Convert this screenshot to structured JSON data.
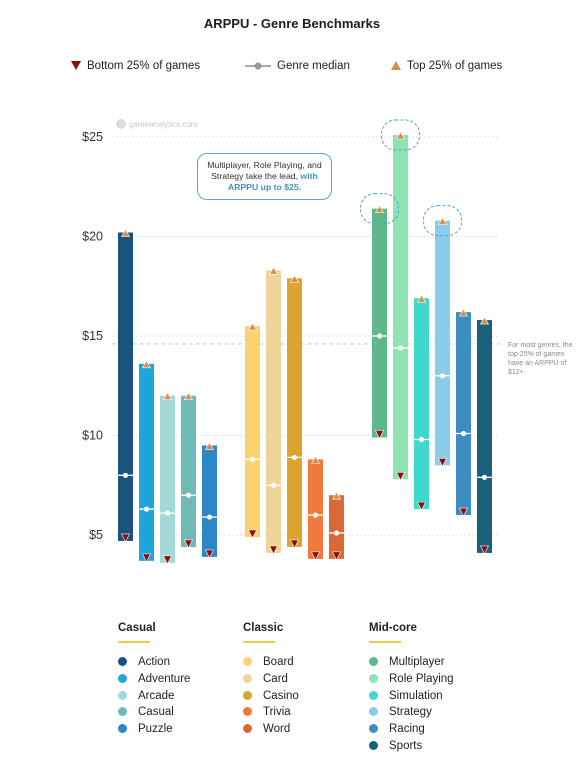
{
  "chart_data": {
    "type": "range-bar",
    "title": "ARPPU - Genre Benchmarks",
    "legend": {
      "bottom": "Bottom 25% of games",
      "median": "Genre median",
      "top": "Top 25% of games"
    },
    "y_ticks": [
      "$25",
      "$20",
      "$15",
      "$10",
      "$5"
    ],
    "ylim": [
      3.5,
      26
    ],
    "reference_line": 14.6,
    "groups": [
      {
        "name": "Casual",
        "series": [
          {
            "name": "Action",
            "color": "#1b527e",
            "bottom": 4.7,
            "median": 8.0,
            "top": 20.2
          },
          {
            "name": "Adventure",
            "color": "#1ea6db",
            "bottom": 3.7,
            "median": 6.3,
            "top": 13.6
          },
          {
            "name": "Arcade",
            "color": "#a3d8d8",
            "bottom": 3.6,
            "median": 6.1,
            "top": 12.0
          },
          {
            "name": "Casual",
            "color": "#6fbab5",
            "bottom": 4.4,
            "median": 7.0,
            "top": 12.0
          },
          {
            "name": "Puzzle",
            "color": "#2c87c4",
            "bottom": 3.9,
            "median": 5.9,
            "top": 9.5
          }
        ]
      },
      {
        "name": "Classic",
        "series": [
          {
            "name": "Board",
            "color": "#fbd26e",
            "bottom": 4.9,
            "median": 8.8,
            "top": 15.5
          },
          {
            "name": "Card",
            "color": "#efd49a",
            "bottom": 4.1,
            "median": 7.5,
            "top": 18.3
          },
          {
            "name": "Casino",
            "color": "#dca32e",
            "bottom": 4.4,
            "median": 8.9,
            "top": 17.9
          },
          {
            "name": "Trivia",
            "color": "#f0793e",
            "bottom": 3.8,
            "median": 6.0,
            "top": 8.8
          },
          {
            "name": "Word",
            "color": "#d96a38",
            "bottom": 3.8,
            "median": 5.1,
            "top": 7.0
          }
        ]
      },
      {
        "name": "Mid-core",
        "series": [
          {
            "name": "Multiplayer",
            "color": "#5fb88a",
            "bottom": 9.9,
            "median": 15.0,
            "top": 21.4
          },
          {
            "name": "Role Playing",
            "color": "#8fe3b3",
            "bottom": 7.8,
            "median": 14.4,
            "top": 25.1
          },
          {
            "name": "Simulation",
            "color": "#3fd8cd",
            "bottom": 6.3,
            "median": 9.8,
            "top": 16.9
          },
          {
            "name": "Strategy",
            "color": "#89cdea",
            "bottom": 8.5,
            "median": 13.0,
            "top": 20.8
          },
          {
            "name": "Racing",
            "color": "#3c8ec0",
            "bottom": 6.0,
            "median": 10.1,
            "top": 16.2
          },
          {
            "name": "Sports",
            "color": "#18607b",
            "bottom": 4.1,
            "median": 7.9,
            "top": 15.8
          }
        ]
      }
    ],
    "annotations": {
      "callout_lines": [
        "Multiplayer, Role Playing, and",
        "Strategy take the lead,"
      ],
      "callout_highlight_a": "with",
      "callout_highlight_b": "ARPPU up to $25.",
      "side_note": "For most genres, the top 25% of games have an ARPPU of $12+.",
      "watermark": "gameanalytics.com"
    }
  }
}
